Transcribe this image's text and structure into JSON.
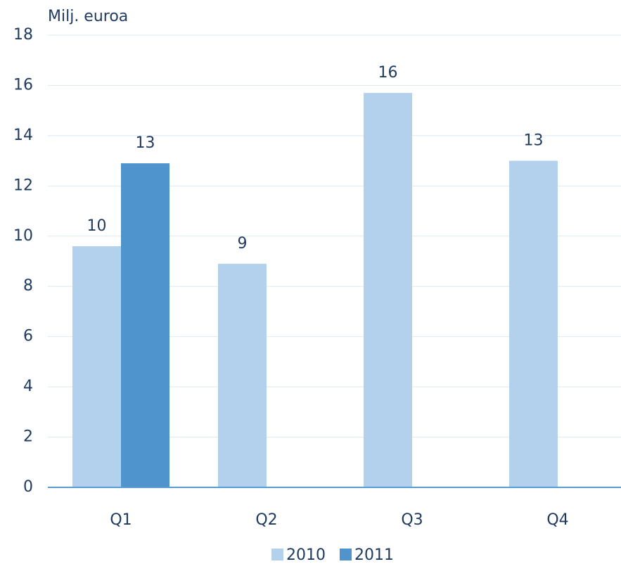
{
  "chart_data": {
    "type": "bar",
    "axis_label": "Milj. euroa",
    "categories": [
      "Q1",
      "Q2",
      "Q3",
      "Q4"
    ],
    "series": [
      {
        "name": "2010",
        "color": "#b3d1ed",
        "values": [
          9.6,
          8.9,
          15.7,
          13.0
        ],
        "value_labels": [
          "10",
          "9",
          "16",
          "13"
        ]
      },
      {
        "name": "2011",
        "color": "#4f94cd",
        "values": [
          12.9,
          null,
          null,
          null
        ],
        "value_labels": [
          "13",
          null,
          null,
          null
        ]
      }
    ],
    "ylim": [
      0,
      18
    ],
    "yticks": [
      0,
      2,
      4,
      6,
      8,
      10,
      12,
      14,
      16,
      18
    ],
    "grid": true,
    "legend": "bottom"
  }
}
